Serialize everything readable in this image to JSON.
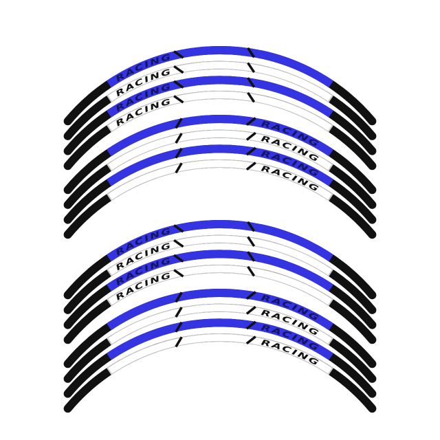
{
  "decal_text": "RACING",
  "colors": {
    "blue": "#3434e2",
    "black": "#111111",
    "white": "#ffffff",
    "outline": "#c8c8c8",
    "text_on_blue": "#14145a",
    "text_on_white": "#111111"
  },
  "groups": [
    {
      "strips": [
        {
          "fill": "blue",
          "text_side": "left"
        },
        {
          "fill": "white",
          "text_side": "left"
        },
        {
          "fill": "blue",
          "text_side": "left"
        },
        {
          "fill": "white",
          "text_side": "left"
        },
        {
          "fill": "blue",
          "text_side": "right"
        },
        {
          "fill": "white",
          "text_side": "right"
        },
        {
          "fill": "blue",
          "text_side": "right"
        },
        {
          "fill": "white",
          "text_side": "right"
        }
      ]
    },
    {
      "strips": [
        {
          "fill": "blue",
          "text_side": "left"
        },
        {
          "fill": "white",
          "text_side": "left"
        },
        {
          "fill": "blue",
          "text_side": "left"
        },
        {
          "fill": "white",
          "text_side": "left"
        },
        {
          "fill": "blue",
          "text_side": "right"
        },
        {
          "fill": "white",
          "text_side": "right"
        },
        {
          "fill": "blue",
          "text_side": "right"
        },
        {
          "fill": "white",
          "text_side": "right"
        }
      ]
    }
  ]
}
